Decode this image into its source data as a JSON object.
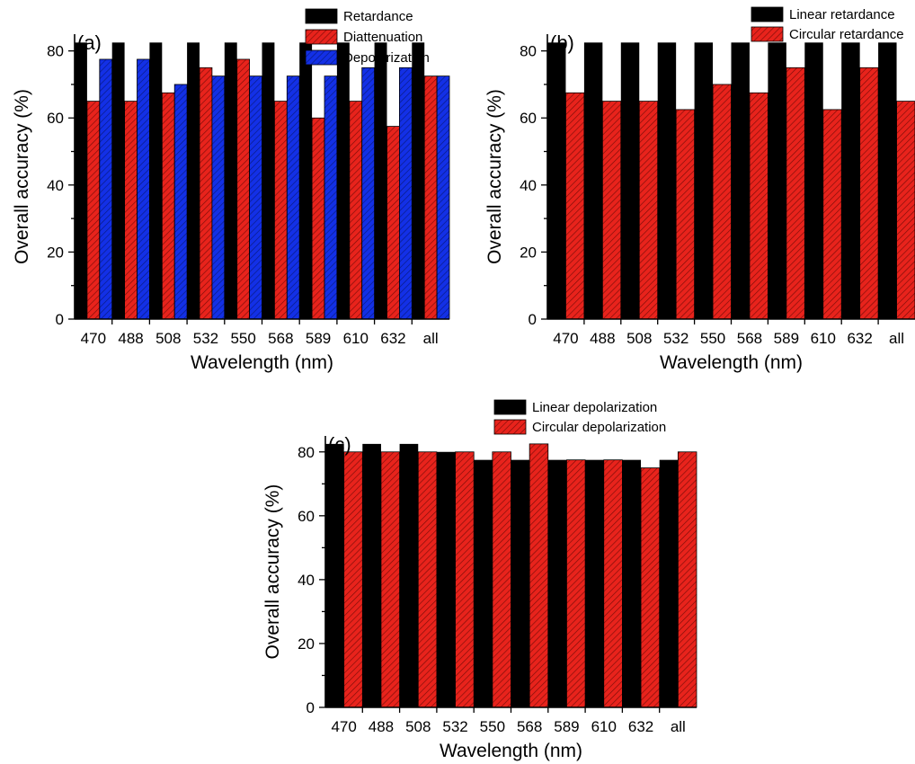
{
  "chart_data": [
    {
      "type": "bar",
      "panel_label": "(a)",
      "categories": [
        "470",
        "488",
        "508",
        "532",
        "550",
        "568",
        "589",
        "610",
        "632",
        "all"
      ],
      "series": [
        {
          "name": "Retardance",
          "values": [
            82.5,
            82.5,
            82.5,
            82.5,
            82.5,
            82.5,
            82.5,
            82.5,
            82.5,
            82.5
          ],
          "color": "#000000",
          "pattern": "solid"
        },
        {
          "name": "Diattenuation",
          "values": [
            65,
            65,
            67.5,
            75,
            77.5,
            65,
            60,
            65,
            57.5,
            72.5
          ],
          "color": "#e8231c",
          "pattern": "hatch"
        },
        {
          "name": "Depolarization",
          "values": [
            77.5,
            77.5,
            70,
            72.5,
            72.5,
            72.5,
            72.5,
            75,
            75,
            72.5
          ],
          "color": "#1330e6",
          "pattern": "hatch"
        }
      ],
      "xlabel": "Wavelength (nm)",
      "ylabel": "Overall accuracy (%)",
      "ylim": [
        0,
        85
      ],
      "yticks": [
        0,
        20,
        40,
        60,
        80
      ],
      "legend_position": "top-right",
      "grid": false
    },
    {
      "type": "bar",
      "panel_label": "(b)",
      "categories": [
        "470",
        "488",
        "508",
        "532",
        "550",
        "568",
        "589",
        "610",
        "632",
        "all"
      ],
      "series": [
        {
          "name": "Linear retardance",
          "values": [
            82.5,
            82.5,
            82.5,
            82.5,
            82.5,
            82.5,
            82.5,
            82.5,
            82.5,
            82.5
          ],
          "color": "#000000",
          "pattern": "solid"
        },
        {
          "name": "Circular retardance",
          "values": [
            67.5,
            65,
            65,
            62.5,
            70,
            67.5,
            75,
            62.5,
            75,
            65
          ],
          "color": "#e8231c",
          "pattern": "hatch"
        }
      ],
      "xlabel": "Wavelength (nm)",
      "ylabel": "Overall accuracy (%)",
      "ylim": [
        0,
        85
      ],
      "yticks": [
        0,
        20,
        40,
        60,
        80
      ],
      "legend_position": "top-right",
      "grid": false
    },
    {
      "type": "bar",
      "panel_label": "(c)",
      "categories": [
        "470",
        "488",
        "508",
        "532",
        "550",
        "568",
        "589",
        "610",
        "632",
        "all"
      ],
      "series": [
        {
          "name": "Linear depolarization",
          "values": [
            82.5,
            82.5,
            82.5,
            80,
            77.5,
            77.5,
            77.5,
            77.5,
            77.5,
            77.5
          ],
          "color": "#000000",
          "pattern": "solid"
        },
        {
          "name": "Circular depolarization",
          "values": [
            80,
            80,
            80,
            80,
            80,
            82.5,
            77.5,
            77.5,
            75,
            80
          ],
          "color": "#e8231c",
          "pattern": "hatch"
        }
      ],
      "xlabel": "Wavelength (nm)",
      "ylabel": "Overall accuracy (%)",
      "ylim": [
        0,
        85
      ],
      "yticks": [
        0,
        20,
        40,
        60,
        80
      ],
      "legend_position": "top",
      "grid": false
    }
  ]
}
